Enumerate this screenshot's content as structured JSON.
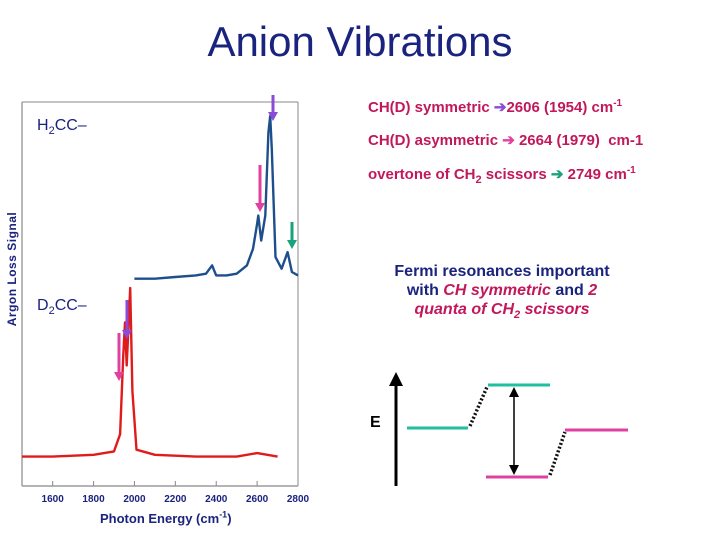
{
  "slide": {
    "title": "Anion Vibrations"
  },
  "labels": {
    "h2cc": "H2CC–",
    "d2cc": "D2CC–",
    "sym": "CH(D) symmetric",
    "sym_val": "2606 (1954) cm-1",
    "asym": "CH(D) asymmetric",
    "asym_val": "2664 (1979)  cm-1",
    "overtone": "overtone of CH2 scissors",
    "overtone_val": "2749 cm-1",
    "fermi_line1": "Fermi resonances important",
    "fermi_line2a": "with ",
    "fermi_line2b": "CH symmetric",
    "fermi_line2c": " and ",
    "fermi_line2d": "2",
    "fermi_line3": "quanta of CH2 scissors",
    "energy": "E"
  },
  "colors": {
    "h2cc_trace": "#1f4e8c",
    "d2cc_trace": "#e01b1b",
    "symmetric_arrow": "#8a4bd6",
    "asymmetric_arrow": "#e040a0",
    "overtone_arrow": "#1aa37a",
    "level_upper": "#1fbfa0",
    "level_lower": "#e040a0"
  },
  "chart_data": {
    "type": "line",
    "xlabel": "Photon Energy (cm-1)",
    "ylabel": "Argon Loss Signal",
    "xlim": [
      1450,
      2800
    ],
    "xticks": [
      1600,
      1800,
      2000,
      2200,
      2400,
      2600,
      2800
    ],
    "series": [
      {
        "name": "H2CC–",
        "color": "#1f4e8c",
        "points": [
          [
            2000,
            0.02
          ],
          [
            2100,
            0.02
          ],
          [
            2200,
            0.03
          ],
          [
            2300,
            0.04
          ],
          [
            2350,
            0.05
          ],
          [
            2380,
            0.1
          ],
          [
            2400,
            0.04
          ],
          [
            2450,
            0.04
          ],
          [
            2500,
            0.05
          ],
          [
            2550,
            0.1
          ],
          [
            2580,
            0.2
          ],
          [
            2600,
            0.35
          ],
          [
            2606,
            0.4
          ],
          [
            2620,
            0.25
          ],
          [
            2640,
            0.4
          ],
          [
            2655,
            0.9
          ],
          [
            2664,
            1.0
          ],
          [
            2672,
            0.8
          ],
          [
            2690,
            0.15
          ],
          [
            2720,
            0.08
          ],
          [
            2749,
            0.18
          ],
          [
            2770,
            0.06
          ],
          [
            2800,
            0.04
          ]
        ]
      },
      {
        "name": "D2CC–",
        "color": "#e01b1b",
        "points": [
          [
            1450,
            0.02
          ],
          [
            1600,
            0.02
          ],
          [
            1800,
            0.03
          ],
          [
            1900,
            0.05
          ],
          [
            1930,
            0.15
          ],
          [
            1945,
            0.6
          ],
          [
            1954,
            0.8
          ],
          [
            1962,
            0.55
          ],
          [
            1970,
            0.75
          ],
          [
            1979,
            1.0
          ],
          [
            1990,
            0.4
          ],
          [
            2010,
            0.06
          ],
          [
            2100,
            0.03
          ],
          [
            2300,
            0.02
          ],
          [
            2500,
            0.02
          ],
          [
            2600,
            0.04
          ],
          [
            2700,
            0.02
          ]
        ]
      }
    ],
    "annotations": [
      {
        "text": "CH(D) symmetric 2606 (1954) cm-1"
      },
      {
        "text": "CH(D) asymmetric 2664 (1979) cm-1"
      },
      {
        "text": "overtone of CH2 scissors 2749 cm-1"
      }
    ]
  }
}
